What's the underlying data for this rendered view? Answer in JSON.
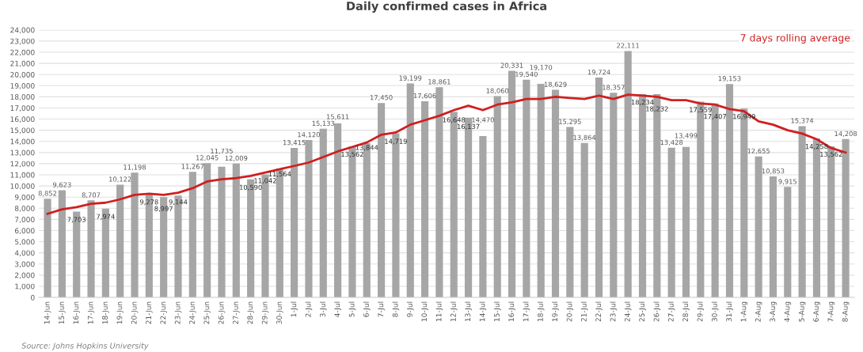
{
  "chart_data": {
    "type": "bar",
    "title": "Daily confirmed cases in Africa",
    "categories": [
      "14-Jun",
      "15-Jun",
      "16-Jun",
      "17-Jun",
      "18-Jun",
      "19-Jun",
      "20-Jun",
      "21-Jun",
      "22-Jun",
      "23-Jun",
      "24-Jun",
      "25-Jun",
      "26-Jun",
      "27-Jun",
      "28-Jun",
      "29-Jun",
      "30-Jun",
      "1-Jul",
      "2-Jul",
      "3-Jul",
      "4-Jul",
      "5-Jul",
      "6-Jul",
      "7-Jul",
      "8-Jul",
      "9-Jul",
      "10-Jul",
      "11-Jul",
      "12-Jul",
      "13-Jul",
      "14-Jul",
      "15-Jul",
      "16-Jul",
      "17-Jul",
      "18-Jul",
      "19-Jul",
      "20-Jul",
      "21-Jul",
      "22-Jul",
      "23-Jul",
      "24-Jul",
      "25-Jul",
      "26-Jul",
      "27-Jul",
      "28-Jul",
      "29-Jul",
      "30-Jul",
      "31-Jul",
      "1-Aug",
      "2-Aug",
      "3-Aug",
      "4-Aug",
      "5-Aug",
      "6-Aug",
      "7-Aug",
      "8-Aug"
    ],
    "series": [
      {
        "color": "#a6a6a6",
        "value_labels": [
          "8,852",
          "9,623",
          "7,703",
          "8,707",
          "7,974",
          "10,122",
          "11,198",
          "9,278",
          "8,997",
          "9,144",
          "11,267",
          "12,045",
          "11,735",
          "12,009",
          "10,590",
          "11,042",
          "11,564",
          "13,415",
          "14,120",
          "15,133",
          "15,611",
          "13,562",
          "13,844",
          "17,450",
          "14,719",
          "19,199",
          "17,606",
          "18,861",
          "16,648",
          "16,137",
          "14,470",
          "18,060",
          "20,331",
          "19,540",
          "19,170",
          "18,629",
          "15,295",
          "13,864",
          "19,724",
          "18,357",
          "22,111",
          "18,234",
          "18,232",
          "13,428",
          "13,499",
          "17,559",
          "17,407",
          "19,153",
          "16,949",
          "12,655",
          "10,853",
          "9,915",
          "15,374",
          "14,258",
          "13,562",
          "14,208"
        ],
        "values": [
          8852,
          9623,
          7703,
          8707,
          7974,
          10122,
          11198,
          9278,
          8997,
          9144,
          11267,
          12045,
          11735,
          12009,
          10590,
          11042,
          11564,
          13415,
          14120,
          15133,
          15611,
          13562,
          13844,
          17450,
          14719,
          19199,
          17606,
          18861,
          16648,
          16137,
          14470,
          18060,
          20331,
          19540,
          19170,
          18629,
          15295,
          13864,
          19724,
          18357,
          22111,
          18234,
          18232,
          13428,
          13499,
          17559,
          17407,
          19153,
          16949,
          12655,
          10853,
          9915,
          15374,
          14258,
          13562,
          14208
        ]
      },
      {
        "type": "line",
        "name": "7 days rolling average",
        "color": "#d01f1f",
        "values": [
          7500,
          7900,
          8100,
          8400,
          8500,
          8800,
          9200,
          9300,
          9200,
          9400,
          9800,
          10400,
          10600,
          10700,
          10900,
          11200,
          11500,
          11800,
          12100,
          12600,
          13100,
          13500,
          13900,
          14600,
          14800,
          15500,
          15900,
          16300,
          16800,
          17200,
          16800,
          17300,
          17500,
          17800,
          17800,
          18000,
          17900,
          17800,
          18100,
          17800,
          18200,
          18100,
          18000,
          17700,
          17700,
          17400,
          17300,
          16900,
          16700,
          15800,
          15500,
          15000,
          14700,
          14200,
          13400,
          13000
        ]
      }
    ],
    "ylim": [
      0,
      24000
    ],
    "yticks": [
      0,
      {
        "value": 1000,
        "label": "1,000"
      },
      {
        "value": 2000,
        "label": "2,000"
      },
      {
        "value": 3000,
        "label": "3,000"
      },
      {
        "value": 4000,
        "label": "4,000"
      },
      {
        "value": 5000,
        "label": "5,000"
      },
      {
        "value": 6000,
        "label": "6,000"
      },
      {
        "value": 7000,
        "label": "7,000"
      },
      {
        "value": 8000,
        "label": "8,000"
      },
      {
        "value": 9000,
        "label": "9,000"
      },
      {
        "value": 10000,
        "label": "10,000"
      },
      {
        "value": 11000,
        "label": "11,000"
      },
      {
        "value": 12000,
        "label": "12,000"
      },
      {
        "value": 13000,
        "label": "13,000"
      },
      {
        "value": 14000,
        "label": "14,000"
      },
      {
        "value": 15000,
        "label": "15,000"
      },
      {
        "value": 16000,
        "label": "16,000"
      },
      {
        "value": 17000,
        "label": "17,000"
      },
      {
        "value": 18000,
        "label": "18,000"
      },
      {
        "value": 19000,
        "label": "19,000"
      },
      {
        "value": 20000,
        "label": "20,000"
      },
      {
        "value": 21000,
        "label": "21,000"
      },
      {
        "value": 22000,
        "label": "22,000"
      },
      {
        "value": 23000,
        "label": "23,000"
      },
      {
        "value": 24000,
        "label": "24,000"
      }
    ],
    "grid": "y",
    "legend": "top right",
    "line_style": "solid",
    "marker": "none",
    "annotations": [
      "Source: Johns Hopkins University"
    ]
  }
}
